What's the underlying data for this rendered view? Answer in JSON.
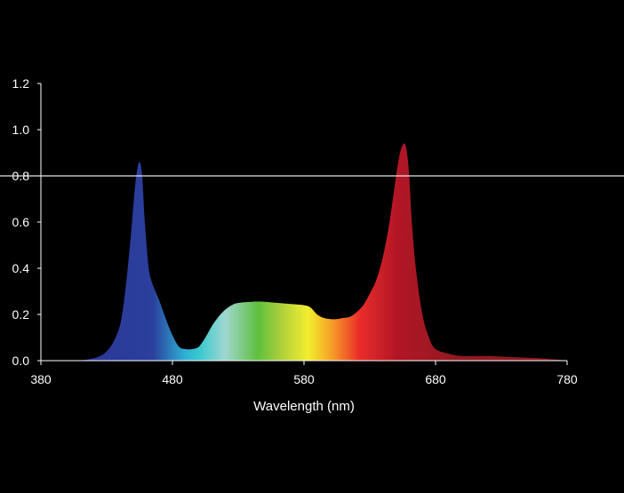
{
  "chart_data": {
    "type": "area",
    "xlabel": "Wavelength (nm)",
    "ylabel": "",
    "xlim": [
      380,
      780
    ],
    "ylim": [
      0,
      1.2
    ],
    "x_ticks": [
      "380",
      "480",
      "580",
      "680",
      "780"
    ],
    "y_ticks": [
      "0.0",
      "0.2",
      "0.4",
      "0.6",
      "0.8",
      "1.0",
      "1.2"
    ],
    "reference_line_y": 0.8,
    "grid": false,
    "series": [
      {
        "x": [
          410,
          420,
          425,
          430,
          435,
          440,
          443,
          446,
          449,
          451,
          453,
          455,
          457,
          459,
          462,
          465,
          470,
          475,
          480,
          485,
          490,
          495,
          500,
          505,
          510,
          515,
          520,
          525,
          530,
          540,
          550,
          560,
          570,
          580,
          585,
          590,
          595,
          600,
          605,
          610,
          615,
          620,
          625,
          630,
          635,
          640,
          645,
          650,
          653,
          656,
          658,
          660,
          662,
          665,
          670,
          675,
          680,
          690,
          700,
          720,
          740,
          760,
          780
        ],
        "y": [
          0.0,
          0.01,
          0.02,
          0.04,
          0.08,
          0.15,
          0.25,
          0.4,
          0.58,
          0.72,
          0.82,
          0.86,
          0.8,
          0.6,
          0.4,
          0.33,
          0.26,
          0.18,
          0.11,
          0.06,
          0.05,
          0.05,
          0.06,
          0.1,
          0.15,
          0.19,
          0.22,
          0.24,
          0.25,
          0.255,
          0.255,
          0.25,
          0.245,
          0.24,
          0.23,
          0.2,
          0.185,
          0.18,
          0.18,
          0.185,
          0.19,
          0.21,
          0.24,
          0.29,
          0.35,
          0.45,
          0.6,
          0.8,
          0.9,
          0.94,
          0.91,
          0.8,
          0.6,
          0.4,
          0.2,
          0.1,
          0.05,
          0.03,
          0.02,
          0.02,
          0.015,
          0.01,
          0.0
        ]
      }
    ],
    "gradient": [
      {
        "nm": 430,
        "color": "#2b3a9a"
      },
      {
        "nm": 465,
        "color": "#2b3f9c"
      },
      {
        "nm": 490,
        "color": "#2fb2d6"
      },
      {
        "nm": 500,
        "color": "#37c8d0"
      },
      {
        "nm": 520,
        "color": "#9fd7cf"
      },
      {
        "nm": 545,
        "color": "#5fbf3f"
      },
      {
        "nm": 565,
        "color": "#b7d23a"
      },
      {
        "nm": 583,
        "color": "#f1ef2e"
      },
      {
        "nm": 600,
        "color": "#f6a427"
      },
      {
        "nm": 622,
        "color": "#ea2d2a"
      },
      {
        "nm": 650,
        "color": "#b31625"
      },
      {
        "nm": 700,
        "color": "#8e1a22"
      }
    ]
  }
}
